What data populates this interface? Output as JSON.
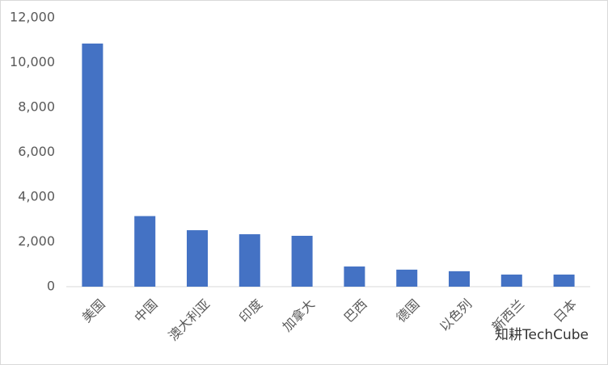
{
  "chart_data": {
    "type": "bar",
    "categories": [
      "美国",
      "中国",
      "澳大利亚",
      "印度",
      "加拿大",
      "巴西",
      "德国",
      "以色列",
      "新西兰",
      "日本"
    ],
    "values": [
      10850,
      3150,
      2520,
      2340,
      2270,
      900,
      760,
      690,
      540,
      540
    ],
    "color": "#4472c4",
    "ylim": [
      0,
      12000
    ],
    "yticks": [
      0,
      {
        "value": 2000,
        "label": "2,000"
      },
      {
        "value": 4000,
        "label": "4,000"
      },
      {
        "value": 6000,
        "label": "6,000"
      },
      {
        "value": 8000,
        "label": "8,000"
      },
      {
        "value": 10000,
        "label": "10,000"
      },
      {
        "value": 12000,
        "label": "12,000"
      }
    ],
    "grid": false,
    "watermark": "知耕TechCube"
  }
}
